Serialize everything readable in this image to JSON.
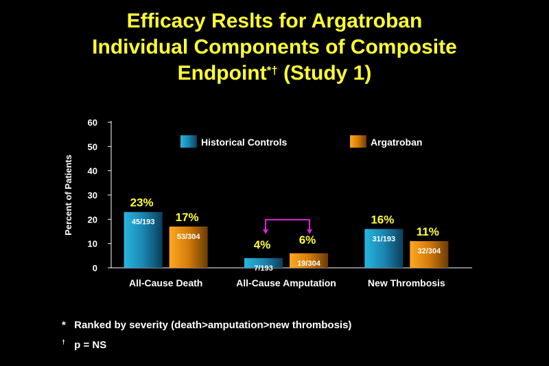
{
  "title": {
    "line1": "Efficacy Reslts for Argatroban",
    "line2": "Individual Components of Composite",
    "line3_main": "Endpoint",
    "line3_marks": "*†",
    "line3_tail": " (Study 1)"
  },
  "chart_data": {
    "type": "bar",
    "ylabel": "Percent of Patients",
    "ylim": [
      0,
      60
    ],
    "yticks": [
      0,
      10,
      20,
      30,
      40,
      50,
      60
    ],
    "categories": [
      "All-Cause Death",
      "All-Cause Amputation",
      "New Thrombosis"
    ],
    "series": [
      {
        "name": "Historical Controls",
        "color": "#1a86b0",
        "values": [
          23,
          4,
          16
        ],
        "value_labels": [
          "23%",
          "4%",
          "16%"
        ],
        "count_labels": [
          "45/193",
          "7/193",
          "31/193"
        ]
      },
      {
        "name": "Argatroban",
        "color": "#e08a10",
        "values": [
          17,
          6,
          11
        ],
        "value_labels": [
          "17%",
          "6%",
          "11%"
        ],
        "count_labels": [
          "53/304",
          "19/304",
          "32/304"
        ]
      }
    ],
    "legend_position": "top",
    "annotation": {
      "type": "bracket",
      "category": "All-Cause Amputation",
      "color": "#dd22dd"
    },
    "grid": false
  },
  "footnotes": [
    {
      "mark": "*",
      "text": "Ranked by severity (death>amputation>new thrombosis)"
    },
    {
      "mark": "†",
      "text": "p = NS"
    }
  ]
}
